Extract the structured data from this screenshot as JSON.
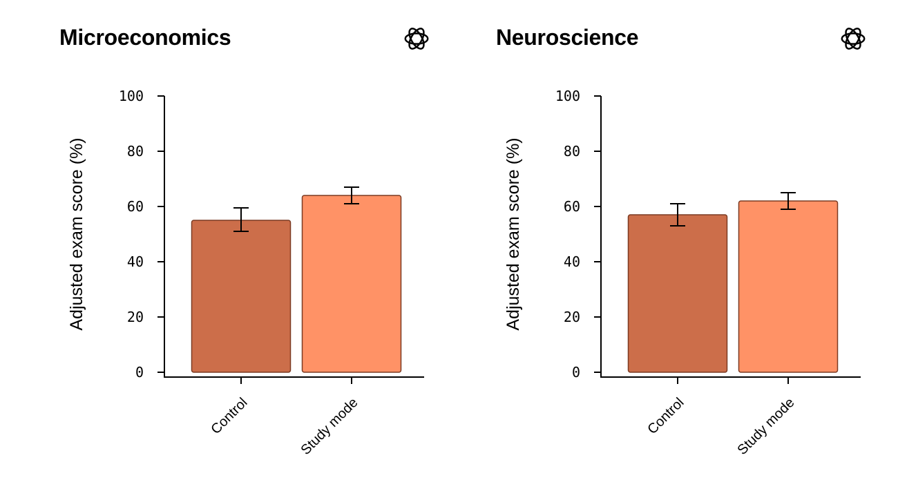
{
  "chart_data": [
    {
      "type": "bar",
      "title": "Microeconomics",
      "categories": [
        "Control",
        "Study mode"
      ],
      "values": [
        55,
        64
      ],
      "error_low": [
        51,
        61
      ],
      "error_high": [
        59.5,
        67
      ],
      "colors": [
        "#CC6E4A",
        "#FF9266"
      ],
      "ylabel": "Adjusted exam score (%)",
      "xlabel": "",
      "ylim": [
        0,
        100
      ],
      "yticks": [
        "0",
        "20",
        "40",
        "60",
        "80",
        "100"
      ],
      "grid": false
    },
    {
      "type": "bar",
      "title": "Neuroscience",
      "categories": [
        "Control",
        "Study mode"
      ],
      "values": [
        57,
        62
      ],
      "error_low": [
        53,
        59
      ],
      "error_high": [
        61,
        65
      ],
      "colors": [
        "#CC6E4A",
        "#FF9266"
      ],
      "ylabel": "Adjusted exam score (%)",
      "xlabel": "",
      "ylim": [
        0,
        100
      ],
      "yticks": [
        "0",
        "20",
        "40",
        "60",
        "80",
        "100"
      ],
      "grid": false
    }
  ],
  "logo_icon": "openai-logo-icon"
}
